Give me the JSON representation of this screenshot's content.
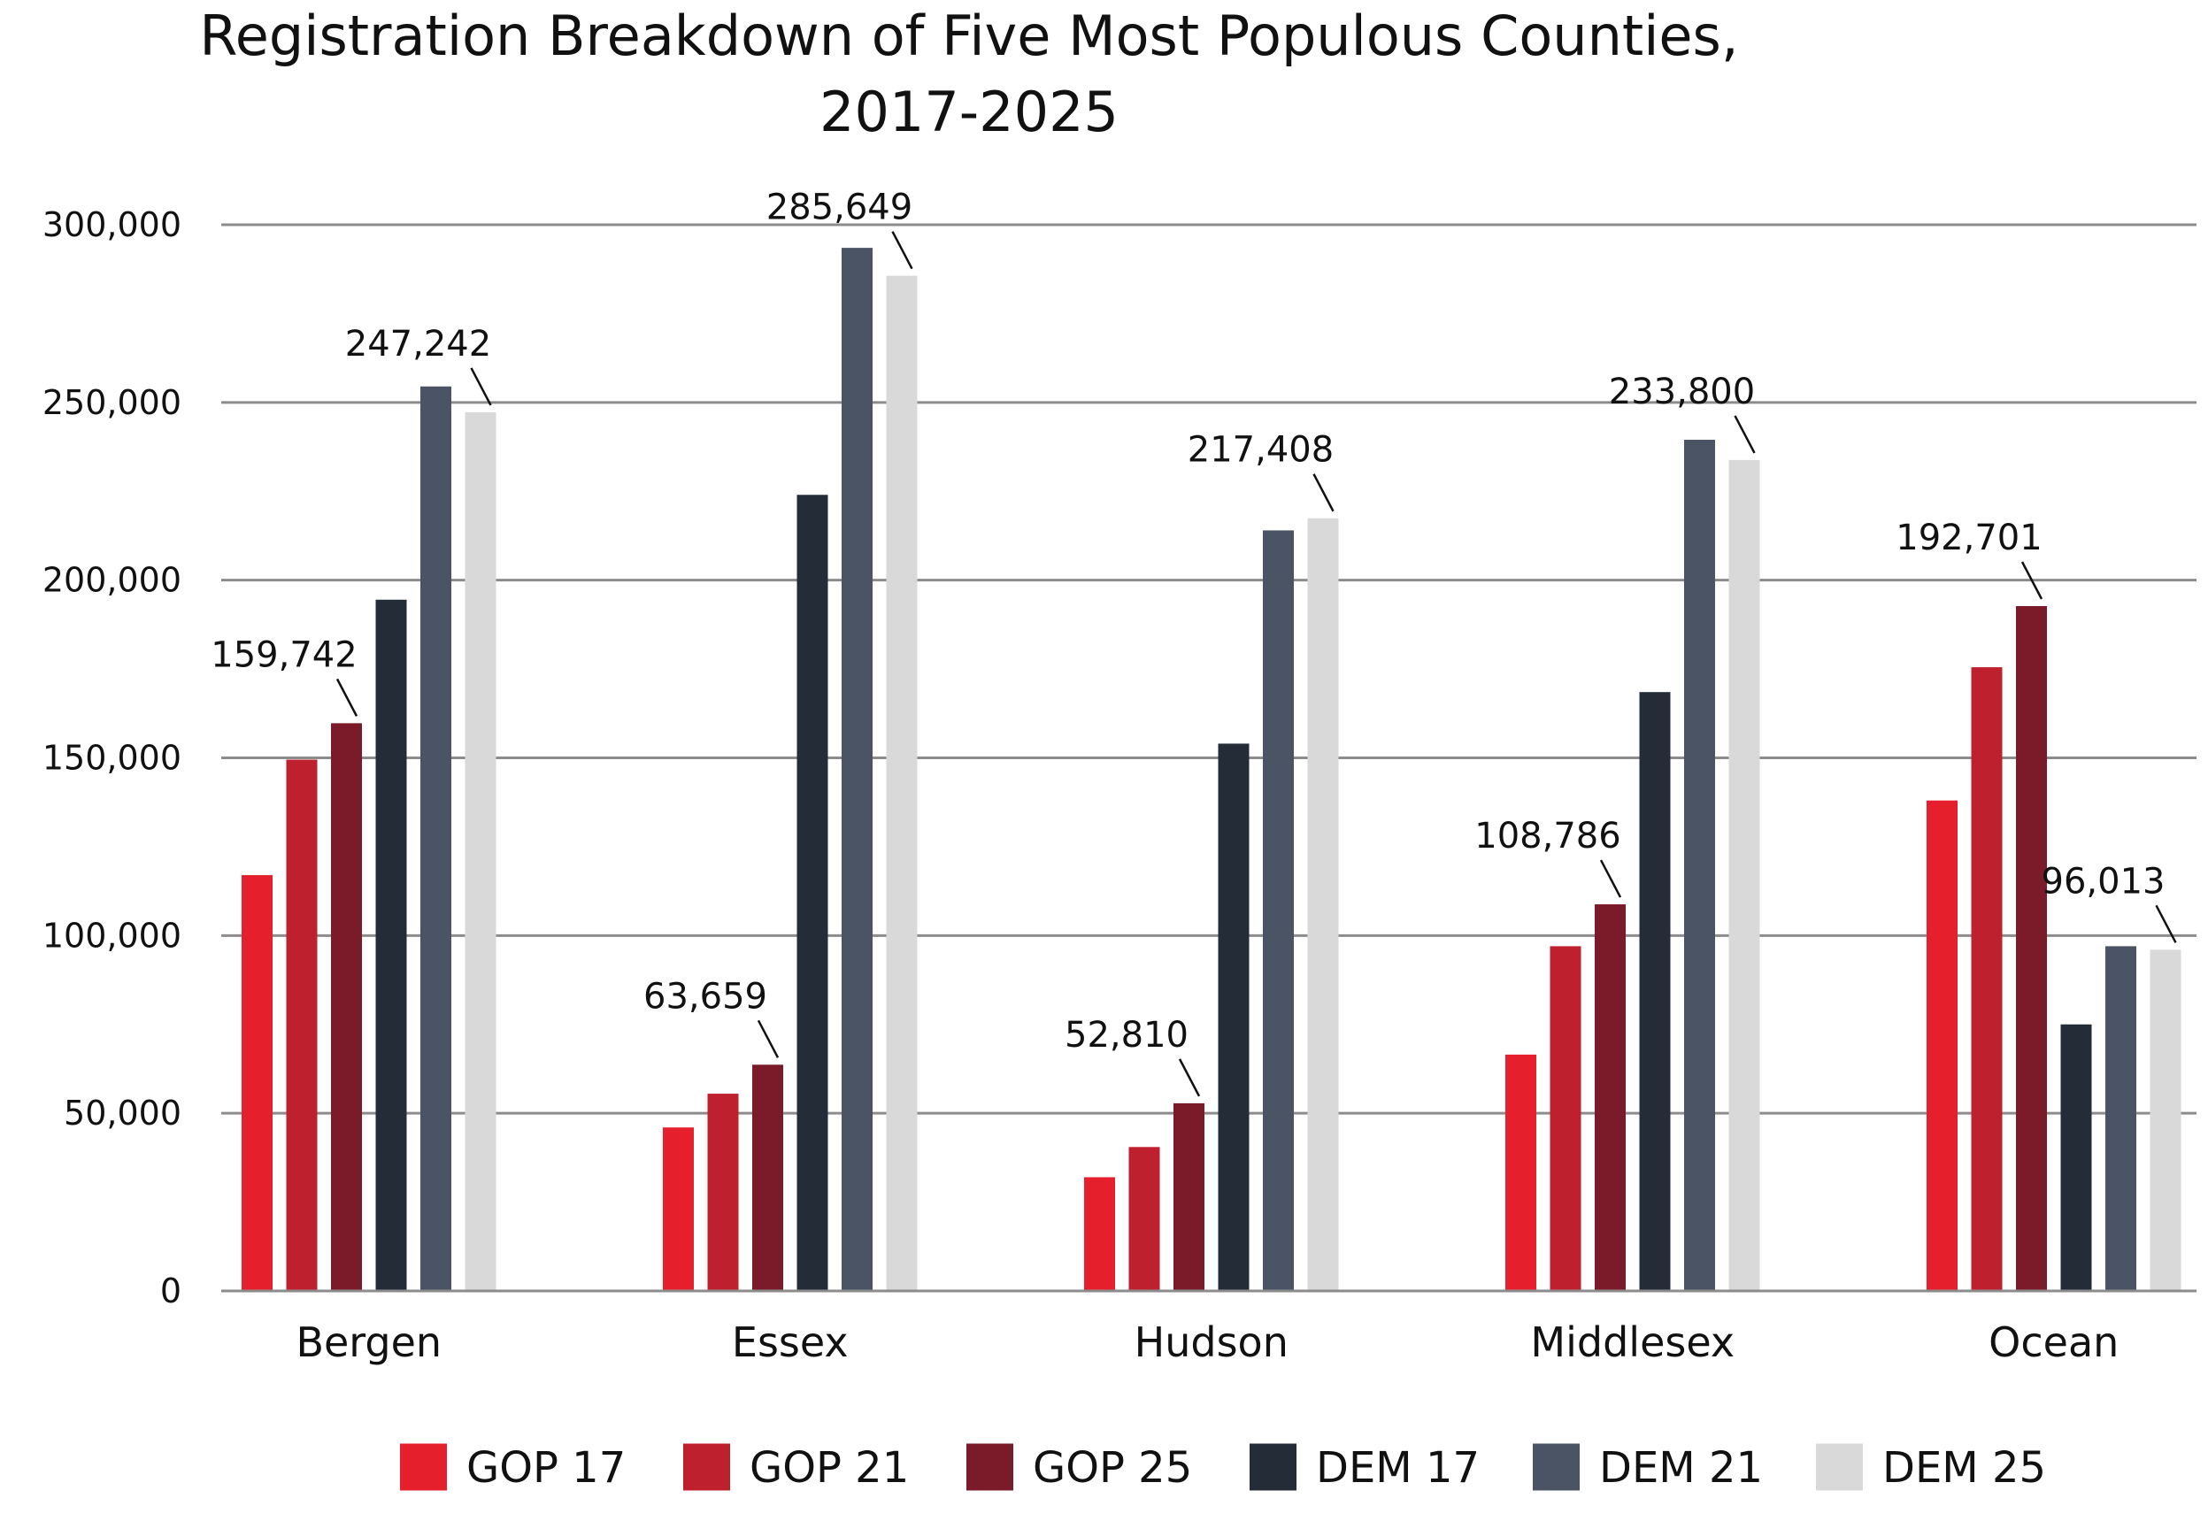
{
  "chart_data": {
    "type": "bar",
    "title": "Registration Breakdown of Five Most Populous Counties,",
    "subtitle": "2017-2025",
    "xlabel": "",
    "ylabel": "",
    "ylim": [
      0,
      300000
    ],
    "yticks": [
      0,
      50000,
      100000,
      150000,
      200000,
      250000,
      300000
    ],
    "ytick_labels": [
      "0",
      "50,000",
      "100,000",
      "150,000",
      "200,000",
      "250,000",
      "300,000"
    ],
    "grid": true,
    "legend_position": "bottom",
    "categories": [
      "Bergen",
      "Essex",
      "Hudson",
      "Middlesex",
      "Ocean"
    ],
    "series": [
      {
        "name": "GOP 17",
        "color": "#e61f2d",
        "values": [
          117000,
          46000,
          32000,
          66500,
          138000
        ]
      },
      {
        "name": "GOP 21",
        "color": "#bf202e",
        "values": [
          149500,
          55500,
          40500,
          97000,
          175500
        ]
      },
      {
        "name": "GOP 25",
        "color": "#7b1a28",
        "values": [
          159742,
          63659,
          52810,
          108786,
          192701
        ]
      },
      {
        "name": "DEM 17",
        "color": "#242c38",
        "values": [
          194500,
          224000,
          154000,
          168500,
          75000
        ]
      },
      {
        "name": "DEM 21",
        "color": "#4a5464",
        "values": [
          254500,
          293500,
          214000,
          239500,
          97000
        ]
      },
      {
        "name": "DEM 25",
        "color": "#d9d9d9",
        "values": [
          247242,
          285649,
          217408,
          233800,
          96013
        ]
      }
    ],
    "annotations": [
      {
        "category": "Bergen",
        "series": "GOP 25",
        "text": "159,742"
      },
      {
        "category": "Bergen",
        "series": "DEM 25",
        "text": "247,242"
      },
      {
        "category": "Essex",
        "series": "GOP 25",
        "text": "63,659"
      },
      {
        "category": "Essex",
        "series": "DEM 25",
        "text": "285,649"
      },
      {
        "category": "Hudson",
        "series": "GOP 25",
        "text": "52,810"
      },
      {
        "category": "Hudson",
        "series": "DEM 25",
        "text": "217,408"
      },
      {
        "category": "Middlesex",
        "series": "GOP 25",
        "text": "108,786"
      },
      {
        "category": "Middlesex",
        "series": "DEM 25",
        "text": "233,800"
      },
      {
        "category": "Ocean",
        "series": "GOP 25",
        "text": "192,701"
      },
      {
        "category": "Ocean",
        "series": "DEM 25",
        "text": "96,013"
      }
    ]
  }
}
